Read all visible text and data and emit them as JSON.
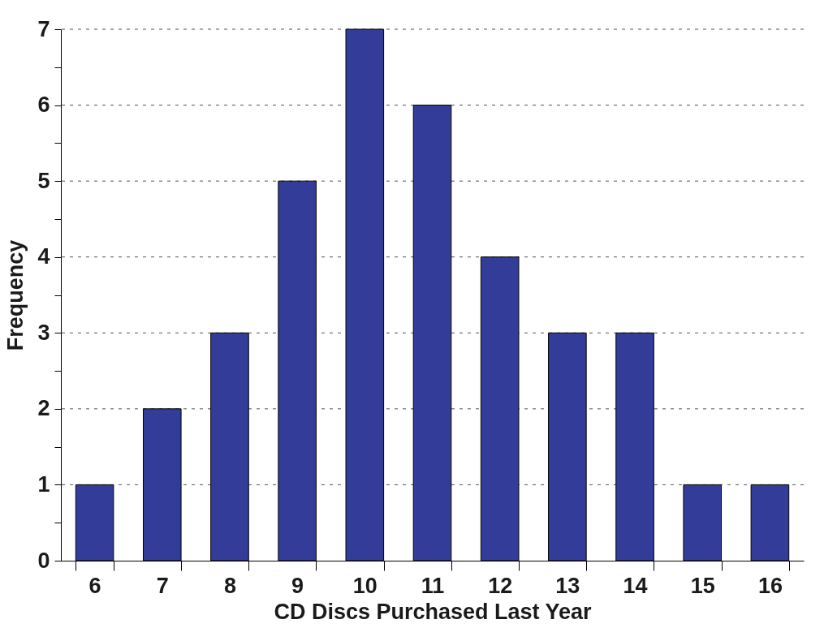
{
  "chart_data": {
    "type": "bar",
    "xlabel": "CD  Discs  Purchased  Last  Year",
    "ylabel": "Frequency",
    "categories": [
      "6",
      "7",
      "8",
      "9",
      "10",
      "11",
      "12",
      "13",
      "14",
      "15",
      "16"
    ],
    "values": [
      1,
      2,
      3,
      5,
      7,
      6,
      4,
      3,
      3,
      1,
      1
    ],
    "color": "#333d99",
    "ylim": [
      0,
      7
    ],
    "yticks": [
      0,
      {
        "value": 0.5,
        "label": null
      },
      1,
      {
        "value": 1.5,
        "label": null
      },
      2,
      {
        "value": 2.5,
        "label": null
      },
      3,
      {
        "value": 3.5,
        "label": null
      },
      4,
      {
        "value": 4.5,
        "label": null
      },
      5,
      {
        "value": 5.5,
        "label": null
      },
      6,
      {
        "value": 6.5,
        "label": null
      },
      7
    ],
    "grid": "y"
  }
}
